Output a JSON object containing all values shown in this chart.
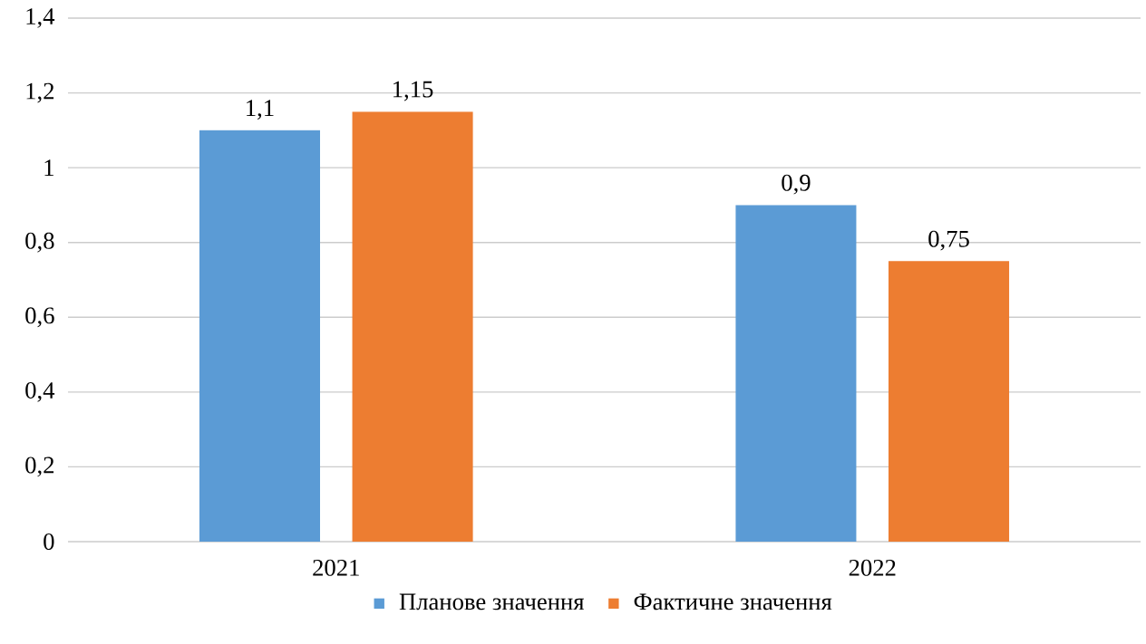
{
  "chart_data": {
    "type": "bar",
    "categories": [
      "2021",
      "2022"
    ],
    "series": [
      {
        "name": "Планове значення",
        "color": "#5b9bd5",
        "values": [
          1.1,
          0.9
        ],
        "value_labels": [
          "1,1",
          "0,9"
        ]
      },
      {
        "name": "Фактичне значення",
        "color": "#ed7d31",
        "values": [
          1.15,
          0.75
        ],
        "value_labels": [
          "1,15",
          "0,75"
        ]
      }
    ],
    "ylim": [
      0,
      1.4
    ],
    "yticks": [
      0,
      {
        "value": 0.2,
        "label": "0,2"
      },
      {
        "value": 0.4,
        "label": "0,4"
      },
      {
        "value": 0.6,
        "label": "0,6"
      },
      {
        "value": 0.8,
        "label": "0,8"
      },
      1,
      {
        "value": 1.2,
        "label": "1,2"
      },
      {
        "value": 1.4,
        "label": "1,4"
      }
    ],
    "grid": "y",
    "legend": "bottom"
  }
}
